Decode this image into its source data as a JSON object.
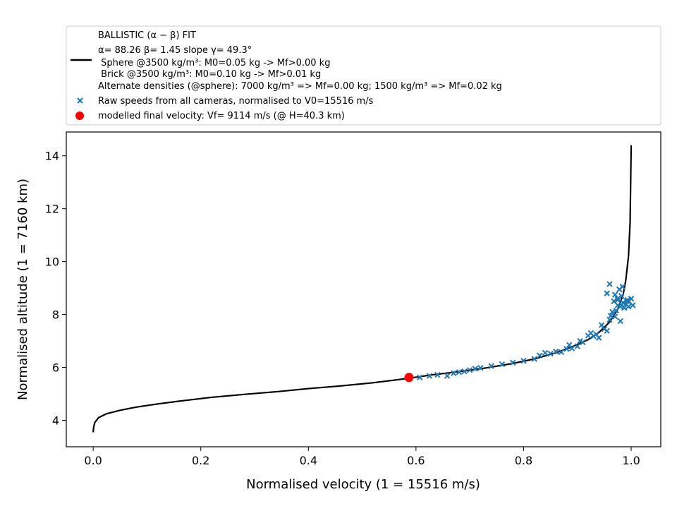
{
  "chart_data": {
    "type": "line",
    "xlabel": "Normalised velocity (1 = 15516 m/s)",
    "ylabel": "Normalised altitude (1 = 7160 km)",
    "xlim": [
      -0.05,
      1.055
    ],
    "ylim": [
      3.0,
      14.9
    ],
    "xticks": [
      0.0,
      0.2,
      0.4,
      0.6,
      0.8,
      1.0
    ],
    "xtick_labels": [
      "0.0",
      "0.2",
      "0.4",
      "0.6",
      "0.8",
      "1.0"
    ],
    "yticks": [
      4,
      6,
      8,
      10,
      12,
      14
    ],
    "ytick_labels": [
      "4",
      "6",
      "8",
      "10",
      "12",
      "14"
    ],
    "grid": false,
    "legend_position": "top",
    "legend": {
      "fit_lines": [
        "BALLISTIC (α − β) FIT",
        "α= 88.26     β= 1.45     slope γ= 49.3°",
        " Sphere @3500 kg/m³: M0=0.05 kg -> Mf>0.00 kg",
        " Brick @3500 kg/m³: M0=0.10 kg -> Mf>0.01 kg",
        "Alternate densities (@sphere): 7000 kg/m³ => Mf=0.00 kg; 1500 kg/m³ => Mf=0.02 kg"
      ],
      "raw_label": "Raw speeds from all cameras, normalised to V0=15516 m/s",
      "final_label": "modelled final velocity: Vf= 9114 m/s (@ H=40.3 km)"
    },
    "series": [
      {
        "kind": "line",
        "color": "#000000",
        "points": [
          [
            0.0,
            3.55
          ],
          [
            0.001,
            3.75
          ],
          [
            0.003,
            3.92
          ],
          [
            0.01,
            4.1
          ],
          [
            0.025,
            4.25
          ],
          [
            0.05,
            4.38
          ],
          [
            0.08,
            4.5
          ],
          [
            0.12,
            4.62
          ],
          [
            0.17,
            4.75
          ],
          [
            0.22,
            4.87
          ],
          [
            0.28,
            4.98
          ],
          [
            0.34,
            5.08
          ],
          [
            0.4,
            5.2
          ],
          [
            0.46,
            5.3
          ],
          [
            0.52,
            5.42
          ],
          [
            0.56,
            5.52
          ],
          [
            0.59,
            5.6
          ],
          [
            0.63,
            5.72
          ],
          [
            0.68,
            5.84
          ],
          [
            0.73,
            5.98
          ],
          [
            0.78,
            6.15
          ],
          [
            0.82,
            6.32
          ],
          [
            0.86,
            6.55
          ],
          [
            0.89,
            6.78
          ],
          [
            0.92,
            7.05
          ],
          [
            0.94,
            7.32
          ],
          [
            0.96,
            7.72
          ],
          [
            0.975,
            8.2
          ],
          [
            0.985,
            8.75
          ],
          [
            0.99,
            9.3
          ],
          [
            0.995,
            10.2
          ],
          [
            0.998,
            11.5
          ],
          [
            1.0,
            14.4
          ]
        ]
      },
      {
        "kind": "scatter",
        "color": "#1f77b4",
        "marker": "x",
        "points": [
          [
            0.607,
            5.62
          ],
          [
            0.625,
            5.68
          ],
          [
            0.64,
            5.72
          ],
          [
            0.658,
            5.68
          ],
          [
            0.67,
            5.78
          ],
          [
            0.68,
            5.82
          ],
          [
            0.69,
            5.85
          ],
          [
            0.7,
            5.9
          ],
          [
            0.71,
            5.95
          ],
          [
            0.72,
            5.98
          ],
          [
            0.74,
            6.05
          ],
          [
            0.76,
            6.12
          ],
          [
            0.78,
            6.18
          ],
          [
            0.8,
            6.25
          ],
          [
            0.82,
            6.32
          ],
          [
            0.83,
            6.45
          ],
          [
            0.84,
            6.55
          ],
          [
            0.85,
            6.52
          ],
          [
            0.86,
            6.6
          ],
          [
            0.87,
            6.58
          ],
          [
            0.88,
            6.7
          ],
          [
            0.885,
            6.85
          ],
          [
            0.89,
            6.72
          ],
          [
            0.9,
            6.8
          ],
          [
            0.905,
            7.0
          ],
          [
            0.91,
            6.95
          ],
          [
            0.92,
            7.2
          ],
          [
            0.925,
            7.3
          ],
          [
            0.93,
            7.18
          ],
          [
            0.935,
            7.25
          ],
          [
            0.94,
            7.12
          ],
          [
            0.945,
            7.6
          ],
          [
            0.95,
            7.45
          ],
          [
            0.955,
            7.38
          ],
          [
            0.96,
            7.8
          ],
          [
            0.962,
            7.95
          ],
          [
            0.965,
            8.1
          ],
          [
            0.968,
            8.5
          ],
          [
            0.97,
            7.92
          ],
          [
            0.972,
            8.15
          ],
          [
            0.975,
            8.6
          ],
          [
            0.978,
            8.95
          ],
          [
            0.98,
            8.3
          ],
          [
            0.982,
            8.7
          ],
          [
            0.985,
            8.45
          ],
          [
            0.987,
            8.25
          ],
          [
            0.99,
            8.4
          ],
          [
            0.993,
            8.55
          ],
          [
            0.996,
            8.5
          ],
          [
            1.0,
            8.6
          ],
          [
            1.003,
            8.35
          ],
          [
            0.984,
            9.05
          ],
          [
            0.955,
            8.8
          ],
          [
            0.96,
            9.15
          ],
          [
            0.975,
            8.55
          ],
          [
            0.97,
            8.75
          ],
          [
            0.995,
            8.3
          ],
          [
            0.975,
            8.35
          ],
          [
            0.98,
            7.75
          ],
          [
            0.992,
            8.5
          ]
        ]
      },
      {
        "kind": "point",
        "color": "#ff0000",
        "points": [
          [
            0.587,
            5.62
          ]
        ]
      }
    ]
  }
}
